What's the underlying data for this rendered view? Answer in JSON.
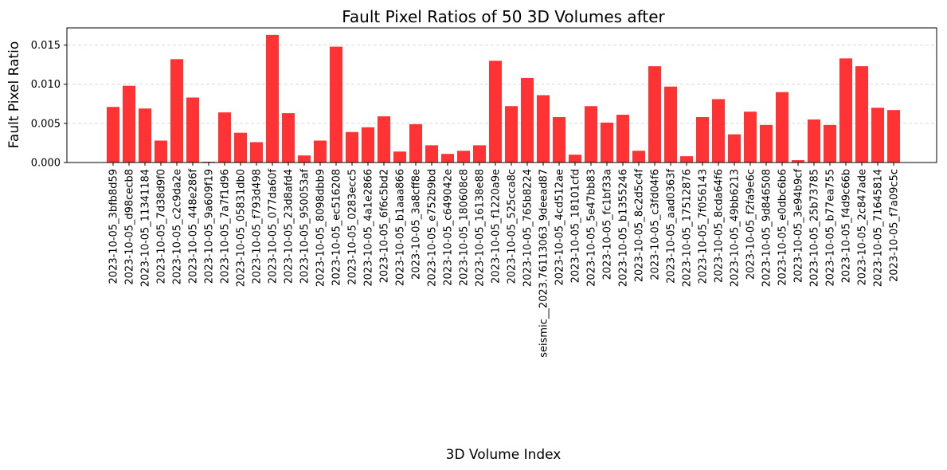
{
  "chart_data": {
    "type": "bar",
    "title": "Fault Pixel Ratios of 50 3D Volumes after",
    "xlabel": "3D Volume Index",
    "ylabel": "Fault Pixel Ratio",
    "ylim": [
      0,
      0.0172
    ],
    "yticks": [
      "0.000",
      "0.005",
      "0.010",
      "0.015"
    ],
    "ytick_values": [
      0,
      0.005,
      0.01,
      0.015
    ],
    "grid": "y-dashed",
    "bar_color": "#ff3333",
    "categories": [
      "2023-10-05_3bfb8d59",
      "2023-10-05_d98cecb8",
      "2023-10-05_11341184",
      "2023-10-05_7d38d9f0",
      "2023-10-05_c2c9da2e",
      "2023-10-05_448e286f",
      "2023-10-05_9a609f19",
      "2023-10-05_7a7f1d96",
      "2023-10-05_05831db0",
      "2023-10-05_f793d498",
      "2023-10-05_077da60f",
      "2023-10-05_23d8afd4",
      "2023-10-05_950053af",
      "2023-10-05_8098dbb9",
      "2023-10-05_ec516208",
      "2023-10-05_0283ecc5",
      "2023-10-05_4a1e2866",
      "2023-10-05_6f6c5bd2",
      "2023-10-05_b1aaa866",
      "2023-10-05_3a8cff8e",
      "2023-10-05_e752b9bd",
      "2023-10-05_c649042e",
      "2023-10-05_180608c8",
      "2023-10-05_16138e88",
      "2023-10-05_f1220a9e",
      "2023-10-05_525cca8c",
      "2023-10-05_765b8224",
      "seismic__2023.76113063_9deead87",
      "2023-10-05_4cd512ae",
      "2023-10-05_18101cfd",
      "2023-10-05_5e47bb83",
      "2023-10-05_fc1bf33a",
      "2023-10-05_b1355246",
      "2023-10-05_8c2d5c4f",
      "2023-10-05_c3fd04f6",
      "2023-10-05_aad0363f",
      "2023-10-05_17512876",
      "2023-10-05_7f056143",
      "2023-10-05_8cda64f6",
      "2023-10-05_49bb6213",
      "2023-10-05_f2fa9e6c",
      "2023-10-05_9d846508",
      "2023-10-05_e0dbc6b6",
      "2023-10-05_3e94b9cf",
      "2023-10-05_25b73785",
      "2023-10-05_b77ea755",
      "2023-10-05_f4d9c66b",
      "2023-10-05_2c847ade",
      "2023-10-05_71645814",
      "2023-10-05_f7a09c5c"
    ],
    "values": [
      0.0071,
      0.0098,
      0.0069,
      0.0028,
      0.0132,
      0.0083,
      0.0001,
      0.0064,
      0.0038,
      0.0026,
      0.0163,
      0.0063,
      0.0009,
      0.0028,
      0.0148,
      0.0039,
      0.0045,
      0.0059,
      0.0014,
      0.0049,
      0.0022,
      0.0011,
      0.0015,
      0.0022,
      0.013,
      0.0072,
      0.0108,
      0.0086,
      0.0058,
      0.001,
      0.0072,
      0.0051,
      0.0061,
      0.0015,
      0.0123,
      0.0097,
      0.0008,
      0.0058,
      0.0081,
      0.0036,
      0.0065,
      0.0048,
      0.009,
      0.0003,
      0.0055,
      0.0048,
      0.0133,
      0.0123,
      0.007,
      0.0067
    ]
  }
}
